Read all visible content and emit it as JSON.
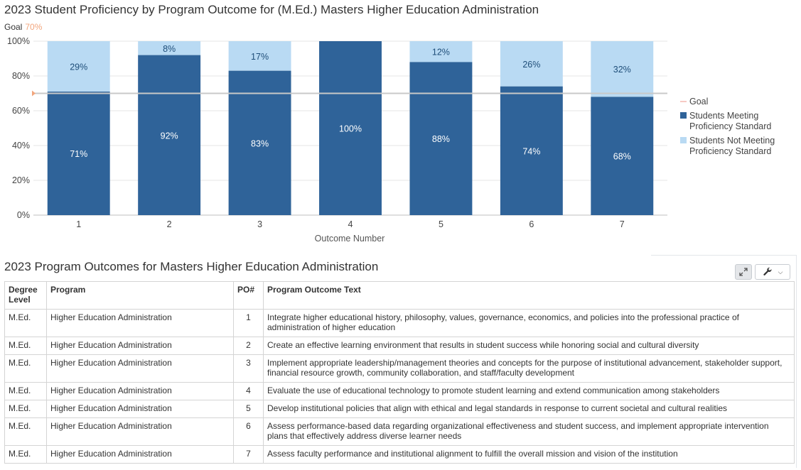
{
  "chart_data": {
    "type": "bar",
    "stacked": true,
    "title": "2023 Student Proficiency by Program Outcome for (M.Ed.) Masters Higher Education Administration",
    "goal_label": "Goal",
    "goal_value_label": "70%",
    "goal": 70,
    "xlabel": "Outcome Number",
    "ylabel": "",
    "ylim": [
      0,
      100
    ],
    "yticks": [
      "0%",
      "20%",
      "40%",
      "60%",
      "80%",
      "100%"
    ],
    "categories": [
      "1",
      "2",
      "3",
      "4",
      "5",
      "6",
      "7"
    ],
    "series": [
      {
        "name": "Students Meeting Proficiency Standard",
        "color": "#2f6399",
        "values": [
          71,
          92,
          83,
          100,
          88,
          74,
          68
        ],
        "labels": [
          "71%",
          "92%",
          "83%",
          "100%",
          "88%",
          "74%",
          "68%"
        ]
      },
      {
        "name": "Students Not Meeting Proficiency Standard",
        "color": "#b9daf3",
        "values": [
          29,
          8,
          17,
          0,
          12,
          26,
          32
        ],
        "labels": [
          "29%",
          "8%",
          "17%",
          "",
          "12%",
          "26%",
          "32%"
        ]
      }
    ],
    "legend": {
      "placement": "right",
      "goal_entry": "Goal",
      "goal_color": "#f4b8b0",
      "meeting_line1": "Students Meeting",
      "meeting_line2": "Proficiency Standard",
      "not_meeting_line1": "Students Not Meeting",
      "not_meeting_line2": "Proficiency Standard"
    },
    "grid": true
  },
  "table": {
    "title": "2023 Program Outcomes for Masters Higher Education Administration",
    "headers": {
      "degree_line1": "Degree",
      "degree_line2": "Level",
      "program": "Program",
      "po": "PO#",
      "text": "Program Outcome Text"
    },
    "rows": [
      {
        "degree": "M.Ed.",
        "program": "Higher Education Administration",
        "po": "1",
        "text": "Integrate higher educational history, philosophy, values, governance, economics, and policies into the professional practice of administration of higher education"
      },
      {
        "degree": "M.Ed.",
        "program": "Higher Education Administration",
        "po": "2",
        "text": "Create an effective learning environment that results in student success while honoring social and cultural diversity"
      },
      {
        "degree": "M.Ed.",
        "program": "Higher Education Administration",
        "po": "3",
        "text": "Implement appropriate leadership/management theories and concepts for the purpose of institutional advancement, stakeholder support, financial resource growth, community collaboration, and staff/faculty development"
      },
      {
        "degree": "M.Ed.",
        "program": "Higher Education Administration",
        "po": "4",
        "text": "Evaluate the use of educational technology to promote student learning and extend communication among stakeholders"
      },
      {
        "degree": "M.Ed.",
        "program": "Higher Education Administration",
        "po": "5",
        "text": "Develop institutional policies that align with ethical and legal standards in response to current societal and cultural realities"
      },
      {
        "degree": "M.Ed.",
        "program": "Higher Education Administration",
        "po": "6",
        "text": "Assess performance-based data regarding organizational effectiveness and student success, and implement appropriate intervention plans that effectively address diverse learner needs"
      },
      {
        "degree": "M.Ed.",
        "program": "Higher Education Administration",
        "po": "7",
        "text": "Assess faculty performance and institutional alignment to fulfill the overall mission and vision of the institution"
      }
    ]
  },
  "toolbar": {
    "expand_icon": "expand-icon",
    "settings_icon": "wrench-icon",
    "dropdown_icon": "chevron-down-icon"
  }
}
